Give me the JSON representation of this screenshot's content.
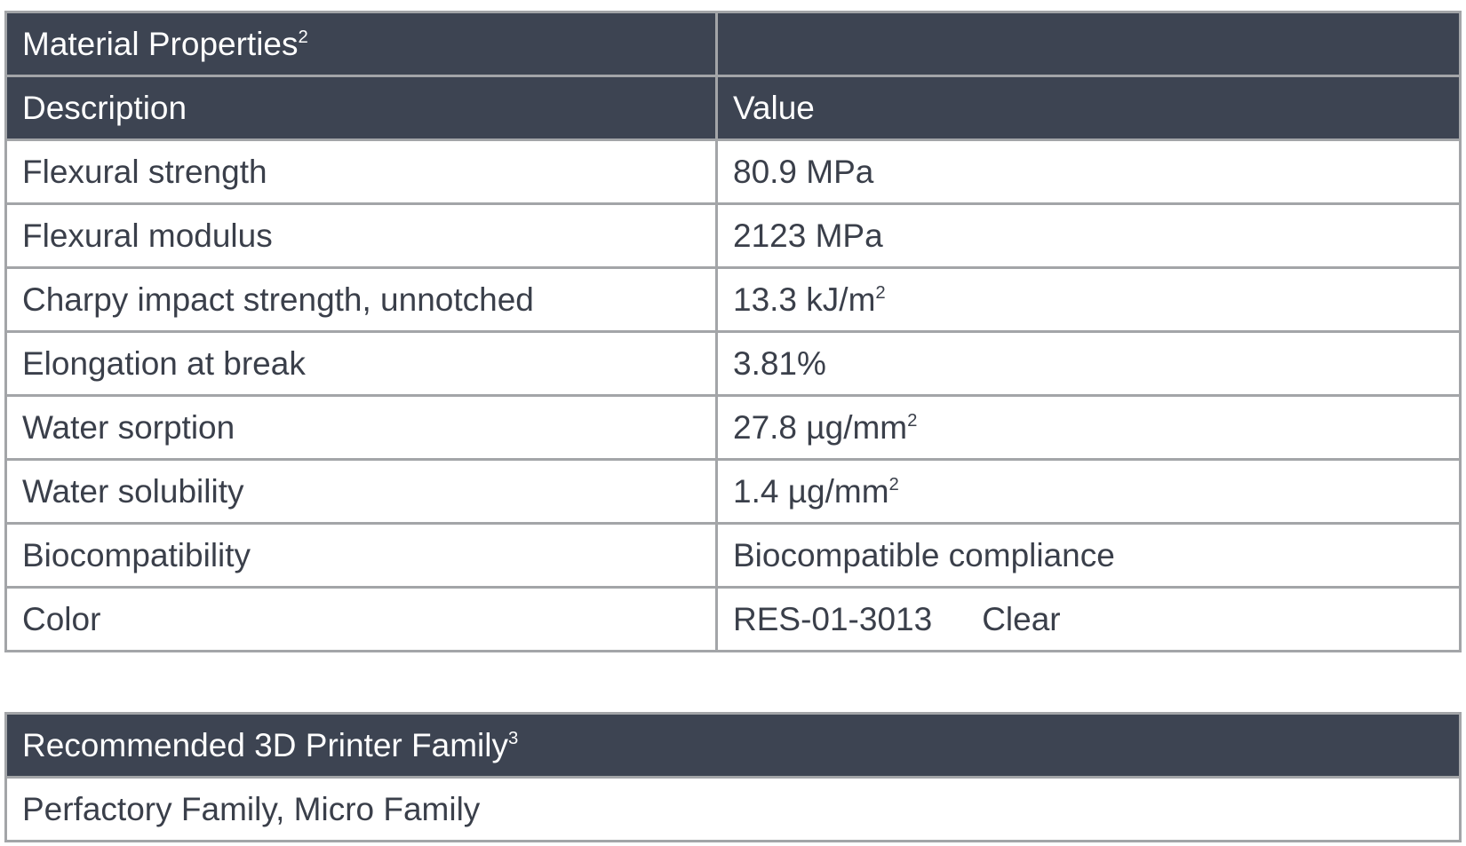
{
  "material_table": {
    "title": "Material Properties",
    "title_footnote": "2",
    "headers": [
      "Description",
      "Value"
    ],
    "rows": [
      {
        "description": "Flexural strength",
        "value": "80.9 MPa",
        "sup": ""
      },
      {
        "description": "Flexural modulus",
        "value": "2123 MPa",
        "sup": ""
      },
      {
        "description": "Charpy impact strength, unnotched",
        "value": "13.3 kJ/m",
        "sup": "2"
      },
      {
        "description": "Elongation at break",
        "value": "3.81%",
        "sup": ""
      },
      {
        "description": "Water sorption",
        "value": "27.8 µg/mm",
        "sup": "2"
      },
      {
        "description": "Water solubility",
        "value": "1.4 µg/mm",
        "sup": "2"
      },
      {
        "description": "Biocompatibility",
        "value": "Biocompatible compliance",
        "sup": ""
      }
    ],
    "color_row": {
      "description": "Color",
      "code": "RES-01-3013",
      "name": "Clear"
    }
  },
  "printer_table": {
    "title": "Recommended 3D Printer Family",
    "title_footnote": "3",
    "value": "Perfactory Family, Micro Family"
  },
  "colors": {
    "header_bg": "#3d4452",
    "border": "#a3a5a8",
    "text": "#3a3f4a"
  }
}
